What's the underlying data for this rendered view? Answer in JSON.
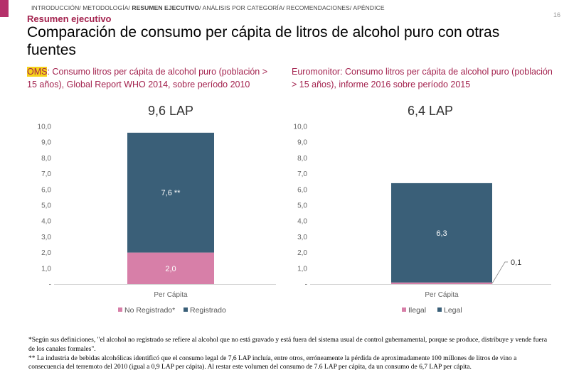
{
  "header": {
    "breadcrumb": [
      {
        "label": "INTRODUCCIÓN/ METODOLOGÍA/ ",
        "active": false
      },
      {
        "label": "RESUMEN EJECUTIVO",
        "active": true
      },
      {
        "label": "/ ANÁLISIS POR CATEGORÍA/ RECOMENDACIONES/ APÉNDICE",
        "active": false
      }
    ],
    "page_number": "16",
    "section": "Resumen ejecutivo",
    "title": "Comparación de consumo per cápita de litros de alcohol puro con otras fuentes",
    "accent_color": "#b5306a"
  },
  "left_panel": {
    "source_highlight": "OMS",
    "subtitle_rest": ": Consumo litros per cápita de alcohol puro (población > 15 años), Global Report WHO 2014, sobre período 2010"
  },
  "right_panel": {
    "subtitle": "Euromonitor: Consumo litros per cápita de alcohol puro (población > 15 años), informe 2016 sobre período 2015"
  },
  "chart_data": [
    {
      "type": "bar",
      "stacked": true,
      "title": "9,6 LAP",
      "categories": [
        "Per Cápita"
      ],
      "series": [
        {
          "name": "No Registrado*",
          "values": [
            2.0
          ],
          "label": "2,0",
          "color": "#d77fa8"
        },
        {
          "name": "Registrado",
          "values": [
            7.6
          ],
          "label": "7,6 **",
          "color": "#3a5f78"
        }
      ],
      "ylim": [
        0,
        10
      ],
      "yticks": [
        "-",
        "1,0",
        "2,0",
        "3,0",
        "4,0",
        "5,0",
        "6,0",
        "7,0",
        "8,0",
        "9,0",
        "10,0"
      ],
      "legend_position": "bottom",
      "grid": false
    },
    {
      "type": "bar",
      "stacked": true,
      "title": "6,4 LAP",
      "categories": [
        "Per Cápita"
      ],
      "series": [
        {
          "name": "Ilegal",
          "values": [
            0.1
          ],
          "label": "0,1",
          "color": "#d77fa8"
        },
        {
          "name": "Legal",
          "values": [
            6.3
          ],
          "label": "6,3",
          "color": "#3a5f78"
        }
      ],
      "ylim": [
        0,
        10
      ],
      "yticks": [
        "-",
        "1,0",
        "2,0",
        "3,0",
        "4,0",
        "5,0",
        "6,0",
        "7,0",
        "8,0",
        "9,0",
        "10,0"
      ],
      "legend_position": "bottom",
      "grid": false
    }
  ],
  "footnotes": [
    "*Según sus definiciones, \"el alcohol no registrado se refiere al alcohol que no está gravado y está fuera del sistema usual de control gubernamental, porque se produce, distribuye y vende fuera de los canales formales\".",
    "** La industria de bebidas alcohólicas identificó que el consumo legal de 7,6 LAP incluía, entre otros, erróneamente la pérdida de aproximadamente 100 millones de litros de vino a consecuencia del terremoto del 2010 (igual a 0,9 LAP per cápita). Al restar este volumen del consumo de 7.6 LAP per cápita, da un consumo de 6,7 LAP per cápita."
  ]
}
